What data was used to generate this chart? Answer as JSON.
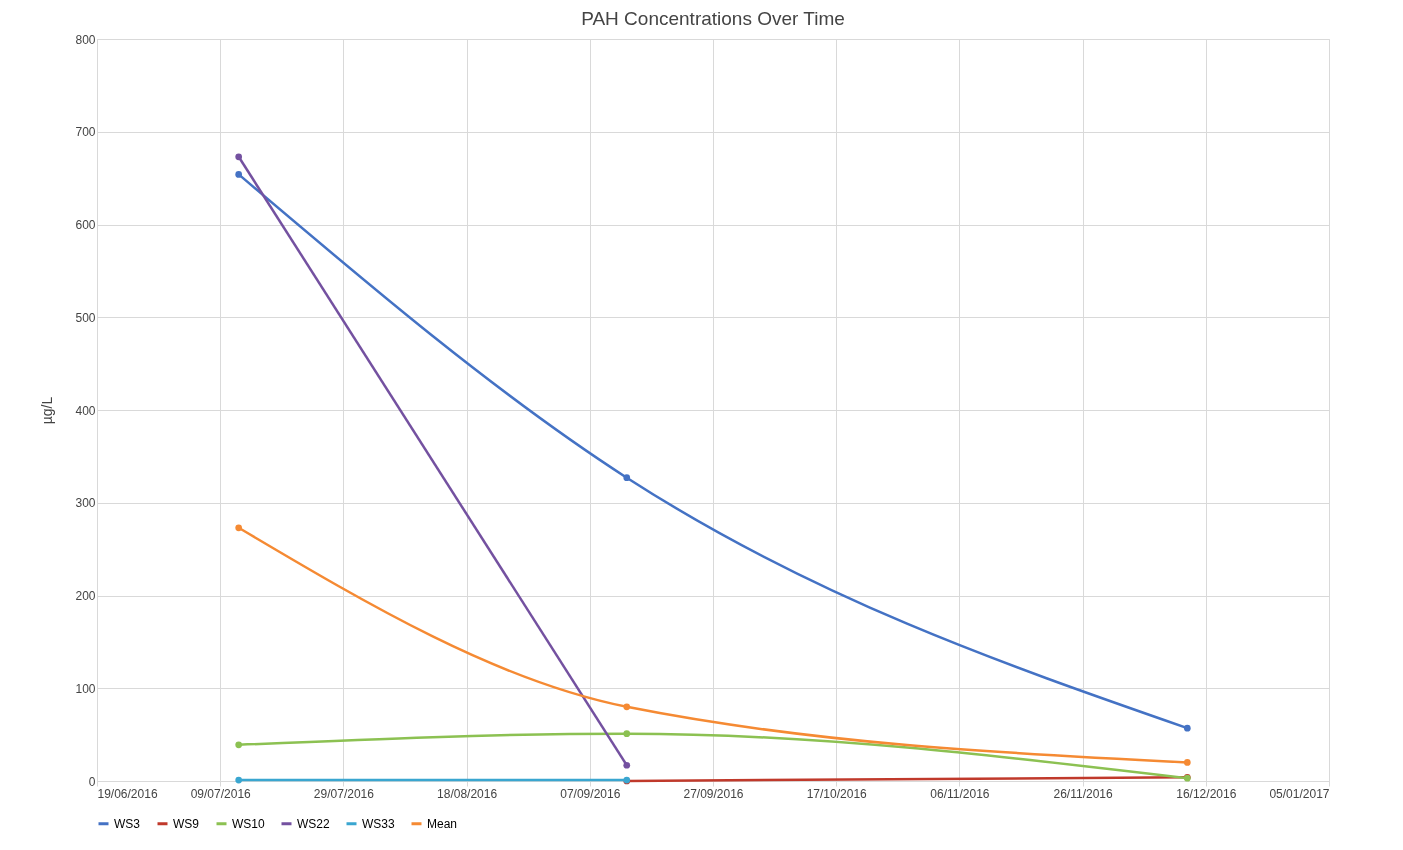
{
  "chart_data": {
    "type": "line",
    "title": "PAH Concentrations Over Time",
    "ylabel": "µg/L",
    "series": [
      {
        "name": "WS3",
        "color": "#4472c4",
        "x": [
          "2016-07-12",
          "2016-09-13",
          "2016-12-13"
        ],
        "values": [
          654,
          327,
          57
        ]
      },
      {
        "name": "WS9",
        "color": "#c0392b",
        "x": [
          "2016-09-13",
          "2016-12-13"
        ],
        "values": [
          0,
          4
        ]
      },
      {
        "name": "WS10",
        "color": "#8cc152",
        "x": [
          "2016-07-12",
          "2016-09-13",
          "2016-12-13"
        ],
        "values": [
          39,
          51,
          3
        ]
      },
      {
        "name": "WS22",
        "color": "#7451a0",
        "x": [
          "2016-07-12",
          "2016-09-13"
        ],
        "values": [
          673,
          17
        ]
      },
      {
        "name": "WS33",
        "color": "#3aa6d0",
        "x": [
          "2016-07-12",
          "2016-09-13"
        ],
        "values": [
          1,
          1
        ]
      },
      {
        "name": "Mean",
        "color": "#f58a33",
        "x": [
          "2016-07-12",
          "2016-09-13",
          "2016-12-13"
        ],
        "values": [
          273,
          80,
          20
        ]
      }
    ],
    "xlim": [
      "2016-06-19",
      "2017-01-05"
    ],
    "xticks": [
      {
        "value": "2016-06-19",
        "label": "19/06/2016"
      },
      {
        "value": "2016-07-09",
        "label": "09/07/2016"
      },
      {
        "value": "2016-07-29",
        "label": "29/07/2016"
      },
      {
        "value": "2016-08-18",
        "label": "18/08/2016"
      },
      {
        "value": "2016-09-07",
        "label": "07/09/2016"
      },
      {
        "value": "2016-09-27",
        "label": "27/09/2016"
      },
      {
        "value": "2016-10-17",
        "label": "17/10/2016"
      },
      {
        "value": "2016-11-06",
        "label": "06/11/2016"
      },
      {
        "value": "2016-11-26",
        "label": "26/11/2016"
      },
      {
        "value": "2016-12-16",
        "label": "16/12/2016"
      },
      {
        "value": "2017-01-05",
        "label": "05/01/2017"
      }
    ],
    "ylim": [
      0,
      800
    ],
    "yticks": [
      0,
      100,
      200,
      300,
      400,
      500,
      600,
      700,
      800
    ],
    "grid": true,
    "legend": "bottom",
    "marker": "circle",
    "line_style": "solid"
  }
}
